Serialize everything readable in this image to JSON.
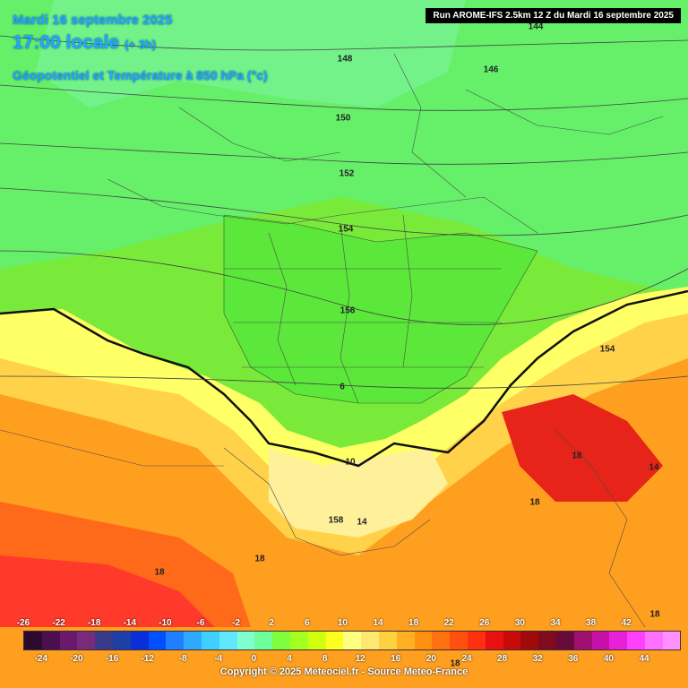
{
  "header": {
    "date": "Mardi 16 septembre 2025",
    "time": "17:00 locale",
    "lead": "(+ 3h)",
    "field": "Géopotentiel et Température à 850 hPa (°c)",
    "run": "Run AROME-IFS 2.5km 12 Z du Mardi 16 septembre 2025"
  },
  "contour_labels": [
    "144",
    "148",
    "146",
    "150",
    "152",
    "154",
    "156",
    "154",
    "158",
    "6",
    "10",
    "14",
    "14",
    "18",
    "18",
    "18",
    "18",
    "18",
    "18"
  ],
  "legend": {
    "top_ticks": [
      "-26",
      "-22",
      "-18",
      "-14",
      "-10",
      "-6",
      "-2",
      "2",
      "6",
      "10",
      "14",
      "18",
      "22",
      "26",
      "30",
      "34",
      "38",
      "42"
    ],
    "bottom_ticks": [
      "-24",
      "-20",
      "-16",
      "-12",
      "-8",
      "-4",
      "0",
      "4",
      "8",
      "12",
      "16",
      "20",
      "24",
      "28",
      "32",
      "36",
      "40",
      "44"
    ],
    "colors": [
      "#2b0a2e",
      "#4b0f4f",
      "#6a1a6e",
      "#7a2a7a",
      "#3a3a8a",
      "#1f3fa8",
      "#0a2fd8",
      "#0050ff",
      "#1f7fff",
      "#2fa8ff",
      "#3fd0ff",
      "#5fe8ff",
      "#7fffd0",
      "#6fff9a",
      "#7dff40",
      "#a5ff20",
      "#d2ff10",
      "#ffff20",
      "#ffff80",
      "#ffe870",
      "#ffd040",
      "#ffb020",
      "#ff9010",
      "#ff7010",
      "#ff5010",
      "#ff3010",
      "#e81010",
      "#c80a0a",
      "#a00a0a",
      "#800a20",
      "#6a0a3a",
      "#a01070",
      "#c810a8",
      "#e820d8",
      "#ff40ff",
      "#ff70ff",
      "#ff90ff"
    ]
  },
  "copyright": "Copyright © 2025 Meteociel.fr - Source Meteo-France"
}
